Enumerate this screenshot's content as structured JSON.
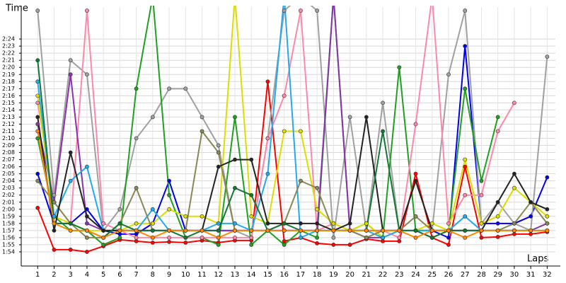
{
  "chart_data": {
    "type": "line",
    "y_label": "Time",
    "x_label": "Laps",
    "x": [
      1,
      2,
      3,
      4,
      5,
      6,
      7,
      8,
      9,
      10,
      11,
      12,
      13,
      14,
      15,
      16,
      17,
      18,
      19,
      20,
      21,
      22,
      23,
      24,
      25,
      26,
      27,
      28,
      29,
      30,
      31,
      32
    ],
    "xlim": [
      0,
      32.5
    ],
    "xticks": [
      1,
      2,
      3,
      4,
      5,
      6,
      7,
      8,
      9,
      10,
      11,
      12,
      13,
      14,
      15,
      16,
      17,
      18,
      19,
      20,
      21,
      22,
      23,
      24,
      25,
      26,
      27,
      28,
      29,
      30,
      31,
      32
    ],
    "ylim": [
      112,
      148.5
    ],
    "yticks": [
      {
        "value": 114,
        "label": "1:54"
      },
      {
        "value": 115,
        "label": "1:55"
      },
      {
        "value": 116,
        "label": "1:56"
      },
      {
        "value": 117,
        "label": "1:57"
      },
      {
        "value": 118,
        "label": "1:58"
      },
      {
        "value": 119,
        "label": "1:59"
      },
      {
        "value": 120,
        "label": "2:00"
      },
      {
        "value": 121,
        "label": "2:01"
      },
      {
        "value": 122,
        "label": "2:02"
      },
      {
        "value": 123,
        "label": "2:03"
      },
      {
        "value": 124,
        "label": "2:04"
      },
      {
        "value": 125,
        "label": "2:05"
      },
      {
        "value": 126,
        "label": "2:06"
      },
      {
        "value": 127,
        "label": "2:07"
      },
      {
        "value": 128,
        "label": "2:08"
      },
      {
        "value": 129,
        "label": "2:09"
      },
      {
        "value": 130,
        "label": "2:10"
      },
      {
        "value": 131,
        "label": "2:11"
      },
      {
        "value": 132,
        "label": "2:12"
      },
      {
        "value": 133,
        "label": "2:13"
      },
      {
        "value": 134,
        "label": "2:14"
      },
      {
        "value": 135,
        "label": "2:15"
      },
      {
        "value": 136,
        "label": "2:16"
      },
      {
        "value": 137,
        "label": "2:17"
      },
      {
        "value": 138,
        "label": "2:18"
      },
      {
        "value": 139,
        "label": "2:19"
      },
      {
        "value": 140,
        "label": "2:20"
      },
      {
        "value": 141,
        "label": "2:21"
      },
      {
        "value": 142,
        "label": "2:22"
      },
      {
        "value": 143,
        "label": "2:23"
      },
      {
        "value": 144,
        "label": "2:24"
      }
    ],
    "grid": true,
    "series": [
      {
        "color": "#ff0000",
        "values": [
          120.2,
          114.3,
          114.3,
          114,
          114.8,
          115.7,
          115.5,
          115.3,
          115.4,
          115.3,
          115.6,
          115.3,
          115.6,
          115.6,
          138,
          115.5,
          116,
          115.2,
          115,
          115,
          115.8,
          115.5,
          115.5,
          125,
          116,
          115,
          126,
          116,
          116.1,
          116.5,
          116.5,
          116.8
        ]
      },
      {
        "color": "#0000ee",
        "values": [
          125,
          118,
          118,
          120,
          117,
          116.5,
          116.5,
          118,
          124,
          117,
          117,
          117,
          117,
          117,
          117,
          117,
          117,
          117,
          117,
          117,
          117,
          117,
          117,
          117,
          117,
          116,
          143,
          118,
          118,
          118,
          119,
          124.5
        ]
      },
      {
        "color": "#a0a0a0",
        "values": [
          148,
          122,
          141,
          139,
          117,
          120,
          130,
          133,
          137,
          137,
          133,
          129,
          117,
          116,
          130,
          148,
          150,
          148,
          116,
          133,
          117,
          135,
          117,
          117,
          117,
          139,
          148,
          118,
          121,
          118,
          117,
          141.5
        ]
      },
      {
        "color": "#20a020",
        "values": [
          130,
          119,
          117,
          117,
          115,
          116,
          137,
          150,
          122,
          116,
          116,
          115,
          133,
          115,
          117,
          115,
          117,
          116,
          150,
          117,
          118,
          116,
          140,
          117,
          117,
          117,
          137,
          124,
          133,
          null,
          null,
          null
        ]
      },
      {
        "color": "#ff88aa",
        "values": [
          135,
          121,
          118,
          148,
          118,
          117,
          116,
          116,
          116,
          116,
          116,
          116,
          116,
          116,
          130,
          136,
          148,
          117,
          118,
          117,
          116,
          117,
          116,
          132,
          150,
          118,
          122,
          122,
          131,
          135,
          null,
          null
        ]
      },
      {
        "color": "#8833aa",
        "values": [
          132,
          121,
          139,
          118,
          117,
          117,
          117,
          117,
          117,
          117,
          117,
          117,
          117,
          117,
          117,
          117,
          117,
          117,
          150,
          117,
          116,
          116,
          117,
          117,
          116,
          117,
          117,
          117,
          117,
          117,
          117,
          118
        ]
      },
      {
        "color": "#dddd00",
        "values": [
          136,
          119,
          118,
          117,
          117,
          117,
          118,
          118,
          120,
          119,
          119,
          118,
          150,
          119,
          118,
          131,
          131,
          120,
          118,
          117,
          118,
          116,
          117,
          117,
          118,
          117,
          127,
          118,
          119,
          123,
          121,
          119
        ]
      },
      {
        "color": "#22aaee",
        "values": [
          138,
          119,
          124,
          126,
          117,
          117,
          117,
          120,
          117,
          117,
          117,
          118,
          118,
          117,
          125,
          150,
          116,
          117,
          117,
          117,
          117,
          116,
          117,
          117,
          117,
          117,
          119,
          117,
          117,
          117,
          117,
          117
        ]
      },
      {
        "color": "#888855",
        "values": [
          124,
          121,
          118,
          116,
          116,
          118,
          123,
          117,
          117,
          117,
          131,
          128,
          117,
          117,
          117,
          118,
          124,
          123,
          117,
          117,
          116,
          117,
          117,
          119,
          117,
          117,
          117,
          117,
          117,
          118,
          121,
          118
        ]
      },
      {
        "color": "#222222",
        "values": [
          133,
          117,
          128,
          119,
          117,
          117,
          117,
          117,
          117,
          117,
          117,
          126,
          127,
          127,
          118,
          118,
          118,
          118,
          117,
          118,
          133,
          117,
          117,
          124,
          117,
          117,
          117,
          117,
          121,
          125,
          121,
          120
        ]
      },
      {
        "color": "#117733",
        "values": [
          141,
          118,
          118,
          117,
          116,
          118,
          117,
          117,
          117,
          116,
          117,
          117,
          123,
          122,
          117,
          118,
          117,
          117,
          117,
          117,
          117,
          131,
          117,
          117,
          116,
          117,
          117,
          117,
          117,
          117,
          117,
          117
        ]
      },
      {
        "color": "#ff8800",
        "values": [
          131,
          118,
          117,
          117,
          116,
          117,
          117,
          116,
          117,
          117,
          117,
          116,
          117,
          117,
          117,
          117,
          117,
          117,
          117,
          117,
          117,
          117,
          117,
          116,
          117,
          117,
          116,
          117,
          117,
          117,
          117,
          117
        ]
      }
    ]
  }
}
